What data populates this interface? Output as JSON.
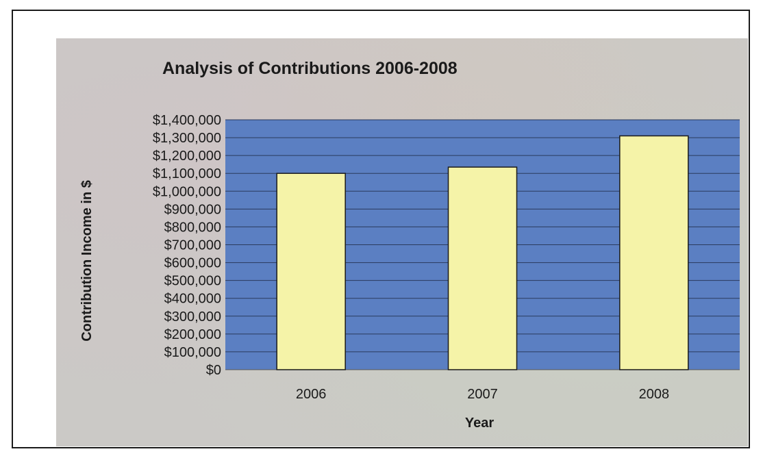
{
  "colors": {
    "plot_background": "#5b7fc2",
    "bar_fill": "#f5f3a8",
    "bar_stroke": "#1a1a1a",
    "gridline": "#2a3a5c",
    "chart_background": "#cbc9c6"
  },
  "chart_data": {
    "type": "bar",
    "title": "Analysis of Contributions 2006-2008",
    "xlabel": "Year",
    "ylabel": "Contribution Income in $",
    "categories": [
      "2006",
      "2007",
      "2008"
    ],
    "values": [
      1100000,
      1135000,
      1310000
    ],
    "ylim": [
      0,
      1400000
    ],
    "yticks": [
      0,
      100000,
      200000,
      300000,
      400000,
      500000,
      600000,
      700000,
      800000,
      900000,
      1000000,
      1100000,
      1200000,
      1300000,
      1400000
    ],
    "ytick_labels": [
      "$0",
      "$100,000",
      "$200,000",
      "$300,000",
      "$400,000",
      "$500,000",
      "$600,000",
      "$700,000",
      "$800,000",
      "$900,000",
      "$1,000,000",
      "$1,100,000",
      "$1,200,000",
      "$1,300,000",
      "$1,400,000"
    ],
    "grid": true,
    "legend": "none"
  }
}
